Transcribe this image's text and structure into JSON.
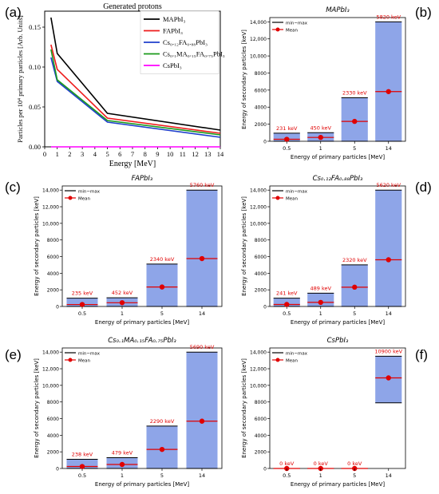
{
  "panel_letters": [
    "(a)",
    "(b)",
    "(c)",
    "(d)",
    "(e)",
    "(f)"
  ],
  "colors": {
    "bar_fill": "#8ea5e8",
    "bar_edge": "#000000",
    "mean": "#e00000",
    "annotation": "#e00000",
    "MAPbI3": "#000000",
    "FAPbI3": "#ee1c1c",
    "Cs012": "#1f3fcc",
    "CsMAFA": "#1a9a1a",
    "CsPbI3": "#ff00ff"
  },
  "chart_data": [
    {
      "panel": "(a)",
      "type": "line",
      "title": "Generated protons",
      "xlabel": "Energy [MeV]",
      "ylabel": "Particles per 10⁴ primary particles [Arb. Units]",
      "xlim": [
        0,
        14
      ],
      "ylim": [
        0,
        0.17
      ],
      "xticks": [
        "0",
        "1",
        "2",
        "3",
        "4",
        "5",
        "6",
        "7",
        "8",
        "9",
        "10",
        "11",
        "12",
        "13",
        "14"
      ],
      "yticks": [
        "0.00",
        "0.05",
        "0.10",
        "0.15"
      ],
      "x": [
        0.5,
        1,
        5,
        14
      ],
      "series": [
        {
          "name": "MAPbI₃",
          "color_key": "MAPbI3",
          "values": [
            0.162,
            0.117,
            0.042,
            0.021
          ]
        },
        {
          "name": "FAPbI₃",
          "color_key": "FAPbI3",
          "values": [
            0.128,
            0.097,
            0.036,
            0.017
          ]
        },
        {
          "name": "Cs₀.₁₂FA₀.₈₈PbI₃",
          "color_key": "Cs012",
          "values": [
            0.112,
            0.082,
            0.031,
            0.012
          ]
        },
        {
          "name": "Cs₀.₁MA₀.₁₅FA₀.₇₅PbI₃",
          "color_key": "CsMAFA",
          "values": [
            0.122,
            0.084,
            0.033,
            0.015
          ]
        },
        {
          "name": "CsPbI₃",
          "color_key": "CsPbI3",
          "values": [
            0.0,
            0.0,
            0.0,
            0.0
          ]
        }
      ],
      "legend_position": "top-right",
      "grid": false
    },
    {
      "panel": "(b)",
      "type": "bar",
      "title": "MAPbI₃",
      "categories": [
        "0.5",
        "1",
        "5",
        "14"
      ],
      "min": [
        0,
        0,
        0,
        0
      ],
      "max": [
        950,
        1000,
        5100,
        14000
      ],
      "mean": [
        231,
        450,
        2330,
        5820
      ],
      "labels": [
        "231 keV",
        "450 keV",
        "2330 keV",
        "5820 keV"
      ],
      "xlabel": "Energy of primary particles [MeV]",
      "ylabel": "Energy of secondary particles [keV]",
      "ylim": [
        0,
        14500
      ],
      "yticks": [
        "0",
        "2000",
        "4000",
        "6000",
        "8000",
        "10,000",
        "12,000",
        "14,000"
      ],
      "legend": [
        "min−max",
        "Mean"
      ],
      "legend_position": "top-left"
    },
    {
      "panel": "(c)",
      "type": "bar",
      "title": "FAPbI₃",
      "categories": [
        "0.5",
        "1",
        "5",
        "14"
      ],
      "min": [
        0,
        0,
        0,
        0
      ],
      "max": [
        1000,
        1050,
        5100,
        14000
      ],
      "mean": [
        235,
        452,
        2340,
        5760
      ],
      "labels": [
        "235 keV",
        "452 keV",
        "2340 keV",
        "5760 keV"
      ],
      "xlabel": "Energy of primary particles [MeV]",
      "ylabel": "Energy of secondary particles [keV]",
      "ylim": [
        0,
        14500
      ],
      "yticks": [
        "0",
        "2000",
        "4000",
        "6000",
        "8000",
        "10,000",
        "12,000",
        "14,000"
      ],
      "legend": [
        "min−max",
        "Mean"
      ],
      "legend_position": "top-left"
    },
    {
      "panel": "(d)",
      "type": "bar",
      "title": "Cs₀.₁₂FA₀.₈₈PbI₃",
      "categories": [
        "0.5",
        "1",
        "5",
        "14"
      ],
      "min": [
        0,
        0,
        0,
        0
      ],
      "max": [
        1000,
        1600,
        5000,
        14000
      ],
      "mean": [
        241,
        489,
        2320,
        5620
      ],
      "labels": [
        "241 keV",
        "489 keV",
        "2320 keV",
        "5620 keV"
      ],
      "xlabel": "Energy of primary particles [MeV]",
      "ylabel": "Energy of secondary particles [keV]",
      "ylim": [
        0,
        14500
      ],
      "yticks": [
        "0",
        "2000",
        "4000",
        "6000",
        "8000",
        "10,000",
        "12,000",
        "14,000"
      ],
      "legend": [
        "min−max",
        "Mean"
      ],
      "legend_position": "top-left"
    },
    {
      "panel": "(e)",
      "type": "bar",
      "title": "Cs₀.₁MA₀.₁₅FA₀.₇₅PbI₃",
      "categories": [
        "0.5",
        "1",
        "5",
        "14"
      ],
      "min": [
        0,
        0,
        0,
        0
      ],
      "max": [
        1100,
        1300,
        5100,
        14000
      ],
      "mean": [
        238,
        479,
        2290,
        5690
      ],
      "labels": [
        "238 keV",
        "479 keV",
        "2290 keV",
        "5690 keV"
      ],
      "xlabel": "Energy of primary particles [MeV]",
      "ylabel": "Energy of secondary particles [keV]",
      "ylim": [
        0,
        14500
      ],
      "yticks": [
        "0",
        "2000",
        "4000",
        "6000",
        "8000",
        "10,000",
        "12,000",
        "14,000"
      ],
      "legend": [
        "min−max",
        "Mean"
      ],
      "legend_position": "top-left"
    },
    {
      "panel": "(f)",
      "type": "bar",
      "title": "CsPbI₃",
      "categories": [
        "0.5",
        "1",
        "5",
        "14"
      ],
      "min": [
        0,
        0,
        0,
        7900
      ],
      "max": [
        0,
        0,
        0,
        13500
      ],
      "mean": [
        0,
        0,
        0,
        10900
      ],
      "labels": [
        "0 keV",
        "0 keV",
        "0 keV",
        "10900 keV"
      ],
      "xlabel": "Energy of primary particles [MeV]",
      "ylabel": "Energy of secondary particles [keV]",
      "ylim": [
        0,
        14500
      ],
      "yticks": [
        "0",
        "2000",
        "4000",
        "6000",
        "8000",
        "10,000",
        "12,000",
        "14,000"
      ],
      "legend": [
        "min−max",
        "Mean"
      ],
      "legend_position": "top-left"
    }
  ]
}
